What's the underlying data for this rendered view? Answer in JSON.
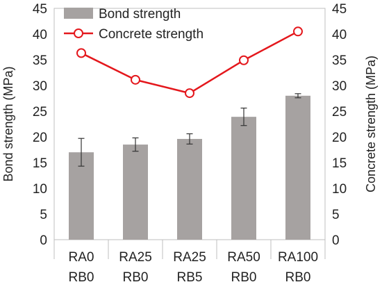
{
  "chart_data": {
    "type": "bar",
    "title": "",
    "categories": [
      [
        "RA0",
        "RB0"
      ],
      [
        "RA25",
        "RB0"
      ],
      [
        "RA25",
        "RB5"
      ],
      [
        "RA50",
        "RB0"
      ],
      [
        "RA100",
        "RB0"
      ]
    ],
    "ylabel_left": "Bond strength (MPa)",
    "ylabel_right": "Concrete strength (MPa)",
    "ylim_left": [
      0,
      45
    ],
    "ylim_right": [
      0,
      45
    ],
    "yticks": [
      0,
      5,
      10,
      15,
      20,
      25,
      30,
      35,
      40,
      45
    ],
    "grid": false,
    "legend_position": "top-left",
    "series": [
      {
        "name": "Bond strength",
        "type": "bar",
        "axis": "left",
        "color": "#a6a2a1",
        "values": [
          17.0,
          18.5,
          19.6,
          23.9,
          28.0
        ],
        "error": [
          2.7,
          1.3,
          1.0,
          1.7,
          0.4
        ]
      },
      {
        "name": "Concrete strength",
        "type": "line",
        "axis": "right",
        "color": "#e4171c",
        "marker": "open-circle",
        "values": [
          36.3,
          31.1,
          28.5,
          34.9,
          40.5
        ]
      }
    ]
  }
}
